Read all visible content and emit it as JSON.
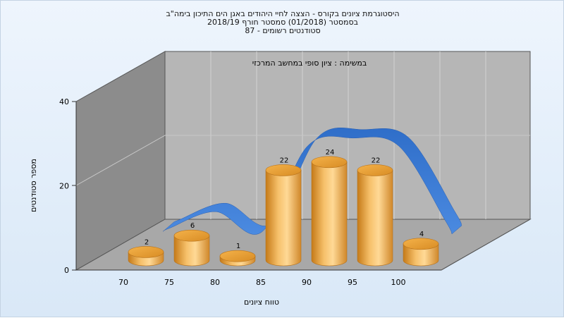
{
  "title": {
    "line1": "היסטוגרמת ציונים בקורס - הצצה לחיי היהודים באגן הים התיכון בימה\"ב",
    "line2": "בסמסטר  (01/2018)  סמסטר חורף  2018/19",
    "line3": "סטודנטים רשומים - 87"
  },
  "chart_data": {
    "type": "bar",
    "subtitle": "במשימה : ציון סופי במחשב המרכזי",
    "xlabel": "טווח ציונים",
    "ylabel": "מספר סטודנטים",
    "x_ticks": [
      "70",
      "75",
      "80",
      "85",
      "90",
      "95",
      "100"
    ],
    "ylim": [
      0,
      40
    ],
    "y_ticks": [
      "0",
      "20",
      "40"
    ],
    "categories": [
      "70",
      "75",
      "80",
      "85",
      "90",
      "95",
      "100"
    ],
    "values": [
      2,
      6,
      1,
      22,
      24,
      22,
      4
    ],
    "data_labels": [
      "2",
      "6",
      "1",
      "22",
      "24",
      "22",
      "4"
    ],
    "trend_series": {
      "values": [
        2,
        6,
        1,
        22,
        24,
        22,
        4
      ]
    },
    "colors": {
      "bar": "#e8a23c",
      "trend": "#3a78cf",
      "back_wall": "#b6b6b6",
      "side_wall": "#8c8c8c",
      "floor": "#a8a8a8"
    },
    "grid": true,
    "legend": "none"
  }
}
